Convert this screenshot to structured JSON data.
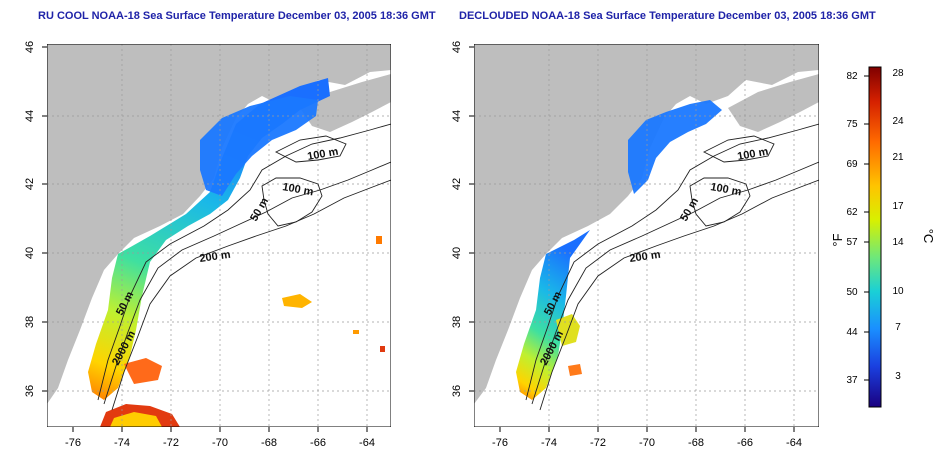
{
  "panels": [
    {
      "title": "RU COOL NOAA-18 Sea Surface Temperature December 03, 2005 18:36 GMT",
      "contour_labels": [
        "100 m",
        "100 m",
        "50 m",
        "200 m",
        "50 m",
        "2000 m"
      ]
    },
    {
      "title": "DECLOUDED NOAA-18 Sea Surface Temperature December 03, 2005 18:36 GMT",
      "contour_labels": [
        "100 m",
        "100 m",
        "50 m",
        "200 m",
        "50 m",
        "2000 m"
      ]
    }
  ],
  "axes": {
    "x_ticks": [
      "-76",
      "-74",
      "-72",
      "-70",
      "-68",
      "-66",
      "-64"
    ],
    "y_ticks": [
      "46",
      "44",
      "42",
      "40",
      "38",
      "36"
    ]
  },
  "colorbar": {
    "fahrenheit_ticks": [
      "82",
      "75",
      "69",
      "62",
      "57",
      "50",
      "44",
      "37"
    ],
    "celsius_ticks": [
      "28",
      "24",
      "21",
      "17",
      "14",
      "10",
      "7",
      "3"
    ],
    "fahrenheit_label": "°F",
    "celsius_label": "°C",
    "colors": [
      "#7f0000",
      "#d42000",
      "#ff6a00",
      "#ffc400",
      "#d8f000",
      "#6ee87a",
      "#1ad0d6",
      "#1a8fff",
      "#1a40e0",
      "#1a0080"
    ]
  },
  "colors": {
    "land": "#bebebe",
    "title": "#1f23a8"
  }
}
